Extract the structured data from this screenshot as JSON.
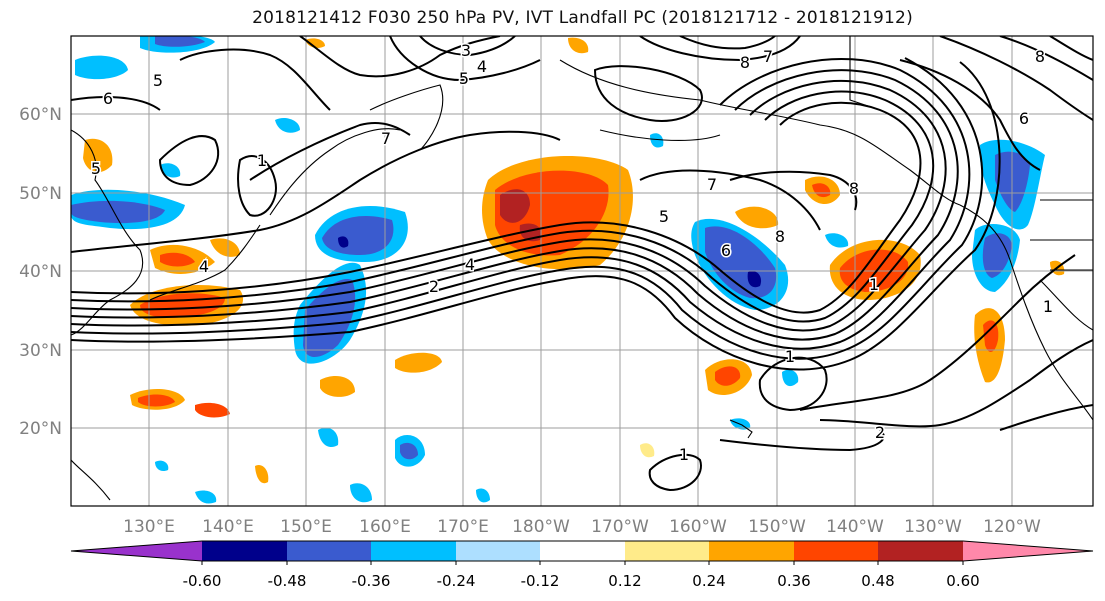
{
  "title": "2018121412 F030 250 hPa PV, IVT Landfall PC (2018121712 - 2018121912)",
  "latitude_labels": [
    "60°N",
    "50°N",
    "40°N",
    "30°N",
    "20°N"
  ],
  "longitude_labels": [
    "130°E",
    "140°E",
    "150°E",
    "160°E",
    "170°E",
    "180°W",
    "170°W",
    "160°W",
    "150°W",
    "140°W",
    "130°W",
    "120°W"
  ],
  "contour_labels": [
    "3",
    "4",
    "5",
    "5",
    "6",
    "8",
    "7",
    "8",
    "6",
    "5",
    "7",
    "1",
    "4",
    "4",
    "2",
    "7",
    "5",
    "6",
    "8",
    "1",
    "1",
    "2",
    "1",
    "1",
    "8"
  ],
  "colorbar": {
    "tick_labels": [
      "-0.60",
      "-0.48",
      "-0.36",
      "-0.24",
      "-0.12",
      "0.12",
      "0.24",
      "0.36",
      "0.48",
      "0.60"
    ],
    "colors": [
      "#9932CC",
      "#00008B",
      "#3A5BCF",
      "#00BFFF",
      "#ADDFFF",
      "#FFFFFF",
      "#FFEB8A",
      "#FFA500",
      "#FF4500",
      "#B22222",
      "#FF88AA"
    ]
  },
  "map": {
    "projection": "cylindrical",
    "region": "North Pacific",
    "lon_range": [
      "120°E",
      "110°W"
    ],
    "lat_range": [
      "10°N",
      "70°N"
    ],
    "graticule": "10°",
    "background_color": "#FFFFFF",
    "grid_color": "#9E9E9E",
    "contour_color": "#000000"
  }
}
